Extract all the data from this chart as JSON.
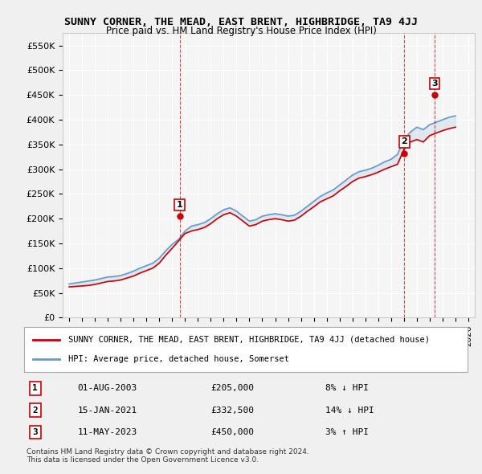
{
  "title": "SUNNY CORNER, THE MEAD, EAST BRENT, HIGHBRIDGE, TA9 4JJ",
  "subtitle": "Price paid vs. HM Land Registry's House Price Index (HPI)",
  "legend_line1": "SUNNY CORNER, THE MEAD, EAST BRENT, HIGHBRIDGE, TA9 4JJ (detached house)",
  "legend_line2": "HPI: Average price, detached house, Somerset",
  "footnote1": "Contains HM Land Registry data © Crown copyright and database right 2024.",
  "footnote2": "This data is licensed under the Open Government Licence v3.0.",
  "sale_color": "#cc0000",
  "hpi_color": "#6699cc",
  "background_color": "#f5f5f5",
  "grid_color": "#ffffff",
  "sales": [
    {
      "num": 1,
      "date": "01-AUG-2003",
      "price": 205000,
      "rel": "8% ↓ HPI",
      "x_year": 2003.58
    },
    {
      "num": 2,
      "date": "15-JAN-2021",
      "price": 332500,
      "rel": "14% ↓ HPI",
      "x_year": 2021.04
    },
    {
      "num": 3,
      "date": "11-MAY-2023",
      "price": 450000,
      "rel": "3% ↑ HPI",
      "x_year": 2023.37
    }
  ],
  "hpi_data": {
    "years": [
      1995,
      1995.5,
      1996,
      1996.5,
      1997,
      1997.5,
      1998,
      1998.5,
      1999,
      1999.5,
      2000,
      2000.5,
      2001,
      2001.5,
      2002,
      2002.5,
      2003,
      2003.5,
      2004,
      2004.5,
      2005,
      2005.5,
      2006,
      2006.5,
      2007,
      2007.5,
      2008,
      2008.5,
      2009,
      2009.5,
      2010,
      2010.5,
      2011,
      2011.5,
      2012,
      2012.5,
      2013,
      2013.5,
      2014,
      2014.5,
      2015,
      2015.5,
      2016,
      2016.5,
      2017,
      2017.5,
      2018,
      2018.5,
      2019,
      2019.5,
      2020,
      2020.5,
      2021,
      2021.5,
      2022,
      2022.5,
      2023,
      2023.5,
      2024,
      2024.5,
      2025
    ],
    "values": [
      68000,
      70000,
      72000,
      74000,
      76000,
      79000,
      82000,
      83000,
      85000,
      89000,
      94000,
      100000,
      105000,
      110000,
      120000,
      135000,
      148000,
      158000,
      175000,
      185000,
      188000,
      192000,
      200000,
      210000,
      218000,
      222000,
      215000,
      205000,
      195000,
      198000,
      205000,
      208000,
      210000,
      208000,
      205000,
      207000,
      215000,
      225000,
      235000,
      245000,
      252000,
      258000,
      268000,
      278000,
      288000,
      295000,
      298000,
      302000,
      308000,
      315000,
      320000,
      330000,
      360000,
      375000,
      385000,
      380000,
      390000,
      395000,
      400000,
      405000,
      408000
    ]
  },
  "sold_price_data": {
    "years": [
      1995,
      1995.5,
      1996,
      1996.5,
      1997,
      1997.5,
      1998,
      1998.5,
      1999,
      1999.5,
      2000,
      2000.5,
      2001,
      2001.5,
      2002,
      2002.5,
      2003,
      2003.5,
      2004,
      2004.5,
      2005,
      2005.5,
      2006,
      2006.5,
      2007,
      2007.5,
      2008,
      2008.5,
      2009,
      2009.5,
      2010,
      2010.5,
      2011,
      2011.5,
      2012,
      2012.5,
      2013,
      2013.5,
      2014,
      2014.5,
      2015,
      2015.5,
      2016,
      2016.5,
      2017,
      2017.5,
      2018,
      2018.5,
      2019,
      2019.5,
      2020,
      2020.5,
      2021,
      2021.5,
      2022,
      2022.5,
      2023,
      2023.5,
      2024,
      2024.5,
      2025
    ],
    "values": [
      62000,
      63000,
      64000,
      65000,
      67000,
      70000,
      73000,
      74000,
      76000,
      80000,
      84000,
      90000,
      95000,
      100000,
      110000,
      126000,
      140000,
      155000,
      170000,
      175000,
      178000,
      182000,
      190000,
      200000,
      208000,
      212000,
      205000,
      195000,
      185000,
      188000,
      195000,
      198000,
      200000,
      198000,
      195000,
      197000,
      205000,
      215000,
      224000,
      234000,
      240000,
      246000,
      256000,
      265000,
      275000,
      282000,
      285000,
      289000,
      294000,
      300000,
      305000,
      310000,
      340000,
      355000,
      360000,
      355000,
      368000,
      373000,
      378000,
      382000,
      385000
    ]
  },
  "xlim": [
    1994.5,
    2026.5
  ],
  "ylim": [
    0,
    575000
  ],
  "yticks": [
    0,
    50000,
    100000,
    150000,
    200000,
    250000,
    300000,
    350000,
    400000,
    450000,
    500000,
    550000
  ],
  "xticks": [
    1995,
    1996,
    1997,
    1998,
    1999,
    2000,
    2001,
    2002,
    2003,
    2004,
    2005,
    2006,
    2007,
    2008,
    2009,
    2010,
    2011,
    2012,
    2013,
    2014,
    2015,
    2016,
    2017,
    2018,
    2019,
    2020,
    2021,
    2022,
    2023,
    2024,
    2025,
    2026
  ]
}
